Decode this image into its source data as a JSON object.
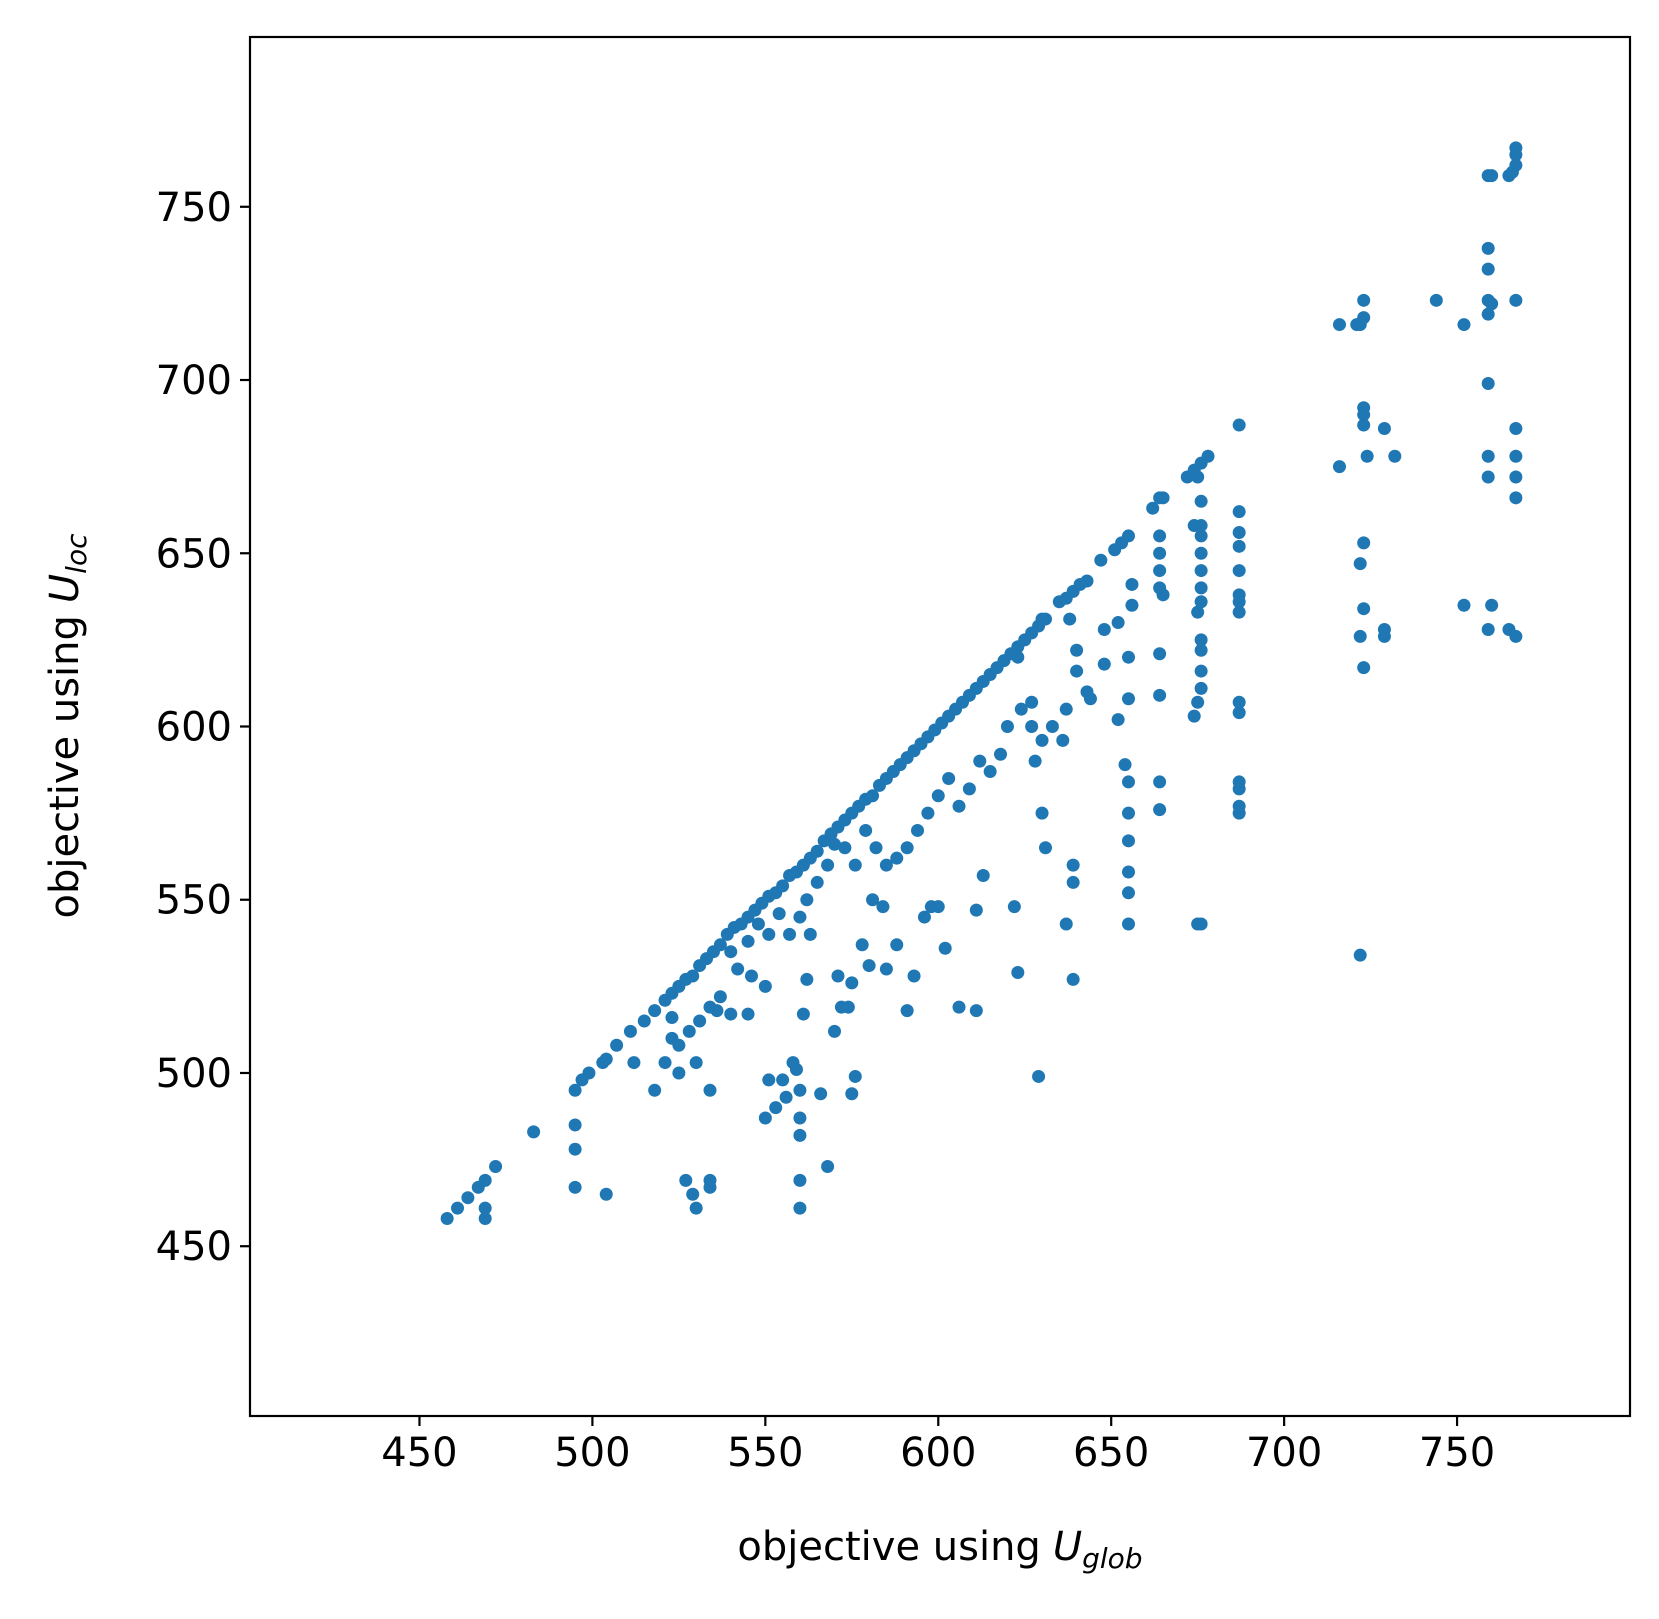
{
  "chart_data": {
    "type": "scatter",
    "color": "#1f77b4",
    "x_label": {
      "text": "objective using",
      "symbol": "U",
      "subscript": "glob"
    },
    "y_label": {
      "text": "objective using",
      "symbol": "U",
      "subscript": "loc"
    },
    "xlim": [
      401,
      800
    ],
    "ylim": [
      401,
      799
    ],
    "xticks": [
      450,
      500,
      550,
      600,
      650,
      700,
      750
    ],
    "yticks": [
      450,
      500,
      550,
      600,
      650,
      700,
      750
    ],
    "grid": false,
    "x": [
      458,
      461,
      464,
      467,
      469,
      472,
      469,
      469,
      483,
      495,
      497,
      499,
      503,
      504,
      507,
      511,
      515,
      518,
      521,
      523,
      525,
      527,
      529,
      531,
      533,
      535,
      537,
      539,
      541,
      543,
      545,
      547,
      549,
      551,
      553,
      555,
      557,
      559,
      561,
      563,
      565,
      567,
      569,
      571,
      573,
      575,
      577,
      579,
      581,
      583,
      585,
      587,
      589,
      591,
      593,
      595,
      597,
      599,
      601,
      603,
      605,
      607,
      609,
      611,
      613,
      615,
      617,
      619,
      621,
      623,
      625,
      627,
      629,
      631,
      635,
      637,
      639,
      641,
      643,
      647,
      651,
      653,
      655,
      662,
      665,
      672,
      674,
      676,
      678,
      687,
      495,
      495,
      495,
      504,
      512,
      518,
      521,
      523,
      523,
      525,
      527,
      529,
      530,
      530,
      534,
      534,
      534,
      536,
      540,
      545,
      546,
      550,
      550,
      551,
      553,
      555,
      556,
      558,
      559,
      560,
      560,
      560,
      560,
      560,
      561,
      562,
      563,
      566,
      568,
      570,
      571,
      572,
      574,
      575,
      575,
      576,
      578,
      580,
      581,
      584,
      585,
      588,
      591,
      593,
      596,
      598,
      600,
      602,
      606,
      611,
      611,
      613,
      622,
      623,
      629,
      631,
      630,
      637,
      639,
      639,
      639,
      655,
      655,
      655,
      655,
      655,
      655,
      654,
      652,
      655,
      655,
      664,
      664,
      664,
      664,
      665,
      674,
      675,
      676,
      675,
      676,
      676,
      676,
      676,
      675,
      676,
      676,
      676,
      676,
      676,
      676,
      676,
      687,
      687,
      687,
      687,
      687,
      687,
      687,
      687,
      687,
      687,
      687,
      687,
      687,
      664,
      664,
      664,
      664,
      656,
      656,
      652,
      648,
      648,
      644,
      640,
      643,
      640,
      637,
      636,
      633,
      630,
      628,
      627,
      624,
      620,
      618,
      615,
      612,
      609,
      606,
      603,
      600,
      597,
      594,
      591,
      588,
      585,
      582,
      579,
      576,
      573,
      570,
      568,
      565,
      562,
      560,
      557,
      554,
      551,
      548,
      545,
      542,
      540,
      537,
      534,
      531,
      528,
      525,
      716,
      716,
      721,
      722,
      723,
      723,
      722,
      722,
      722,
      723,
      723,
      723,
      723,
      723,
      723,
      724,
      729,
      729,
      729,
      732,
      744,
      752,
      752,
      759,
      760,
      759,
      759,
      759,
      760,
      759,
      759,
      759,
      759,
      759,
      760,
      765,
      765,
      766,
      767,
      767,
      767,
      767,
      767,
      767,
      767,
      767,
      767,
      664,
      675,
      674,
      638,
      630,
      627,
      623
    ],
    "values": [
      458,
      461,
      464,
      467,
      469,
      473,
      461,
      458,
      483,
      495,
      498,
      500,
      503,
      504,
      508,
      512,
      515,
      518,
      521,
      523,
      525,
      527,
      528,
      531,
      533,
      535,
      537,
      540,
      542,
      543,
      545,
      547,
      549,
      551,
      552,
      554,
      557,
      558,
      560,
      562,
      564,
      567,
      569,
      571,
      573,
      575,
      577,
      579,
      580,
      583,
      585,
      587,
      589,
      591,
      593,
      595,
      597,
      599,
      601,
      603,
      605,
      607,
      609,
      611,
      613,
      615,
      617,
      619,
      621,
      623,
      625,
      627,
      629,
      631,
      636,
      637,
      639,
      641,
      642,
      648,
      651,
      653,
      655,
      663,
      666,
      672,
      674,
      676,
      678,
      687,
      485,
      478,
      467,
      465,
      503,
      495,
      503,
      516,
      510,
      500,
      469,
      465,
      461,
      503,
      469,
      467,
      495,
      518,
      517,
      517,
      528,
      525,
      487,
      498,
      490,
      498,
      493,
      503,
      501,
      469,
      461,
      487,
      482,
      495,
      517,
      527,
      540,
      494,
      473,
      512,
      528,
      519,
      519,
      494,
      526,
      499,
      537,
      531,
      550,
      548,
      530,
      537,
      518,
      528,
      545,
      548,
      548,
      536,
      519,
      518,
      547,
      557,
      548,
      529,
      499,
      565,
      575,
      543,
      527,
      555,
      560,
      543,
      552,
      558,
      567,
      575,
      584,
      589,
      602,
      608,
      620,
      584,
      576,
      609,
      621,
      638,
      603,
      543,
      543,
      607,
      611,
      616,
      622,
      625,
      633,
      636,
      640,
      645,
      650,
      655,
      658,
      665,
      575,
      577,
      582,
      584,
      604,
      607,
      633,
      636,
      638,
      645,
      652,
      656,
      662,
      645,
      650,
      655,
      640,
      635,
      641,
      630,
      628,
      618,
      608,
      616,
      610,
      622,
      605,
      596,
      600,
      596,
      590,
      600,
      605,
      600,
      592,
      587,
      590,
      582,
      577,
      585,
      580,
      575,
      570,
      565,
      562,
      560,
      565,
      570,
      560,
      565,
      566,
      560,
      555,
      550,
      545,
      540,
      546,
      540,
      543,
      538,
      530,
      535,
      522,
      519,
      515,
      512,
      508,
      716,
      675,
      716,
      716,
      718,
      723,
      647,
      626,
      534,
      692,
      690,
      687,
      653,
      634,
      617,
      678,
      686,
      628,
      626,
      678,
      723,
      716,
      635,
      759,
      759,
      738,
      732,
      723,
      722,
      719,
      699,
      678,
      672,
      628,
      635,
      759,
      628,
      760,
      765,
      767,
      762,
      723,
      686,
      678,
      672,
      666,
      626,
      666,
      672,
      658,
      631,
      631,
      607,
      620
    ]
  }
}
